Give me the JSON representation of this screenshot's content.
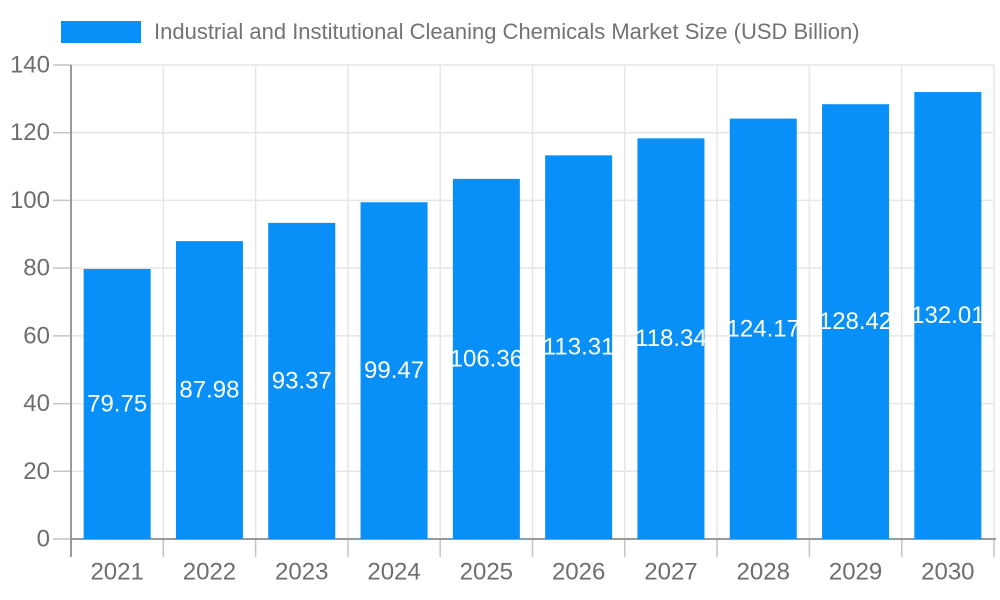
{
  "chart_data": {
    "type": "bar",
    "title": "Industrial and Institutional Cleaning Chemicals Market Size (USD Billion)",
    "categories": [
      "2021",
      "2022",
      "2023",
      "2024",
      "2025",
      "2026",
      "2027",
      "2028",
      "2029",
      "2030"
    ],
    "values": [
      79.75,
      87.98,
      93.37,
      99.47,
      106.36,
      113.31,
      118.34,
      124.17,
      128.42,
      132.01
    ],
    "value_labels": [
      "79.75",
      "87.98",
      "93.37",
      "99.47",
      "106.36",
      "113.31",
      "118.34",
      "124.17",
      "128.42",
      "132.01"
    ],
    "xlabel": "",
    "ylabel": "",
    "ylim": [
      0,
      140
    ],
    "yticks": [
      0,
      20,
      40,
      60,
      80,
      100,
      120,
      140
    ],
    "grid": true,
    "legend_position": "top-left",
    "colors": {
      "bar": "#0890f8",
      "bar_value_label": "#ffffff",
      "axis_text": "#6e6e6e",
      "gridline": "#e6e6e6",
      "axis_line": "#999999",
      "tick": "#c4c4c4",
      "background": "#ffffff"
    }
  }
}
